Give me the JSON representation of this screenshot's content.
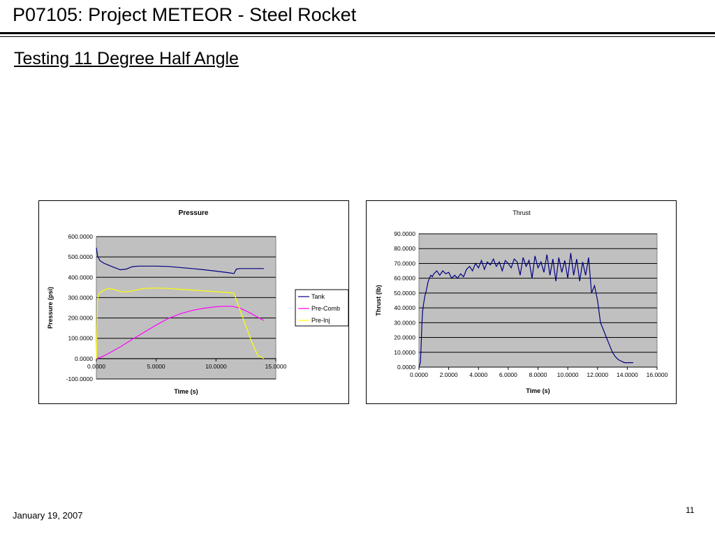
{
  "slide": {
    "title": "P07105: Project METEOR - Steel Rocket",
    "subtitle": "Testing 11 Degree Half Angle",
    "date": "January 19, 2007",
    "page_number": "11"
  },
  "chart_data": [
    {
      "type": "line",
      "title": "Pressure",
      "xlabel": "Time (s)",
      "ylabel": "Pressure (psi)",
      "xlim": [
        0,
        15
      ],
      "ylim": [
        -100,
        600
      ],
      "xticks": [
        "0.0000",
        "5.0000",
        "10.0000",
        "15.0000"
      ],
      "yticks": [
        "600.0000",
        "500.0000",
        "400.0000",
        "300.0000",
        "200.0000",
        "100.0000",
        "0.0000",
        "-100.0000"
      ],
      "grid": true,
      "legend_position": "right",
      "series": [
        {
          "name": "Tank",
          "color": "#000080",
          "x": [
            0.0,
            0.1,
            0.3,
            0.6,
            1.0,
            1.5,
            2.0,
            2.5,
            3.0,
            3.5,
            4.0,
            5.0,
            6.0,
            7.0,
            8.0,
            9.0,
            10.0,
            11.0,
            11.5,
            11.7,
            12.0,
            13.0,
            14.0
          ],
          "y": [
            545,
            505,
            482,
            470,
            460,
            448,
            437,
            440,
            452,
            455,
            455,
            455,
            453,
            448,
            443,
            437,
            430,
            423,
            418,
            440,
            443,
            443,
            443
          ]
        },
        {
          "name": "Pre-Comb",
          "color": "#ff00ff",
          "x": [
            0.0,
            0.5,
            1.0,
            2.0,
            3.0,
            4.0,
            5.0,
            6.0,
            7.0,
            8.0,
            9.0,
            10.0,
            11.0,
            11.5,
            12.0,
            12.5,
            13.0,
            13.5,
            14.0
          ],
          "y": [
            0,
            10,
            25,
            58,
            95,
            130,
            165,
            197,
            220,
            237,
            248,
            255,
            258,
            256,
            248,
            235,
            220,
            203,
            188
          ]
        },
        {
          "name": "Pre-Inj",
          "color": "#ffff00",
          "x": [
            0.0,
            0.05,
            0.1,
            0.15,
            0.3,
            0.6,
            1.0,
            1.5,
            2.0,
            2.5,
            3.0,
            4.0,
            5.0,
            6.0,
            7.0,
            8.0,
            9.0,
            10.0,
            11.0,
            11.5,
            12.0,
            12.5,
            13.0,
            13.5,
            14.0
          ],
          "y": [
            0,
            150,
            280,
            310,
            325,
            335,
            345,
            340,
            330,
            328,
            333,
            345,
            347,
            345,
            341,
            337,
            333,
            329,
            325,
            322,
            240,
            160,
            80,
            15,
            0
          ]
        }
      ]
    },
    {
      "type": "line",
      "title": "Thrust",
      "xlabel": "Time (s)",
      "ylabel": "Thrust (lb)",
      "xlim": [
        0,
        16
      ],
      "ylim": [
        0,
        90
      ],
      "xticks": [
        "0.0000",
        "2.0000",
        "4.0000",
        "6.0000",
        "8.0000",
        "10.0000",
        "12.0000",
        "14.0000",
        "16.0000"
      ],
      "yticks": [
        "90.0000",
        "80.0000",
        "70.0000",
        "60.0000",
        "50.0000",
        "40.0000",
        "30.0000",
        "20.0000",
        "10.0000",
        "0.0000"
      ],
      "grid": true,
      "series": [
        {
          "name": "",
          "color": "#000080",
          "x": [
            0.0,
            0.1,
            0.15,
            0.2,
            0.25,
            0.3,
            0.4,
            0.5,
            0.6,
            0.7,
            0.8,
            0.9,
            1.0,
            1.2,
            1.4,
            1.6,
            1.8,
            2.0,
            2.2,
            2.4,
            2.6,
            2.8,
            3.0,
            3.2,
            3.4,
            3.6,
            3.8,
            4.0,
            4.2,
            4.4,
            4.6,
            4.8,
            5.0,
            5.2,
            5.4,
            5.6,
            5.8,
            6.0,
            6.2,
            6.4,
            6.6,
            6.8,
            7.0,
            7.2,
            7.4,
            7.6,
            7.8,
            8.0,
            8.2,
            8.4,
            8.6,
            8.8,
            9.0,
            9.2,
            9.4,
            9.6,
            9.8,
            10.0,
            10.2,
            10.4,
            10.6,
            10.8,
            11.0,
            11.2,
            11.4,
            11.6,
            11.8,
            12.0,
            12.2,
            12.4,
            12.6,
            12.8,
            13.0,
            13.2,
            13.4,
            13.6,
            13.8,
            14.0,
            14.2,
            14.4
          ],
          "y": [
            0,
            3,
            15,
            30,
            38,
            42,
            48,
            52,
            57,
            60,
            62,
            61,
            63,
            65,
            62,
            65,
            63,
            64,
            60,
            62,
            60,
            63,
            61,
            66,
            68,
            65,
            70,
            67,
            72,
            66,
            71,
            69,
            73,
            68,
            71,
            65,
            72,
            70,
            67,
            73,
            71,
            62,
            74,
            68,
            72,
            60,
            75,
            67,
            71,
            64,
            76,
            62,
            73,
            58,
            74,
            64,
            72,
            60,
            77,
            62,
            73,
            58,
            71,
            62,
            74,
            50,
            55,
            45,
            30,
            25,
            20,
            15,
            10,
            7,
            5,
            4,
            3,
            3,
            3,
            3
          ]
        }
      ]
    }
  ]
}
